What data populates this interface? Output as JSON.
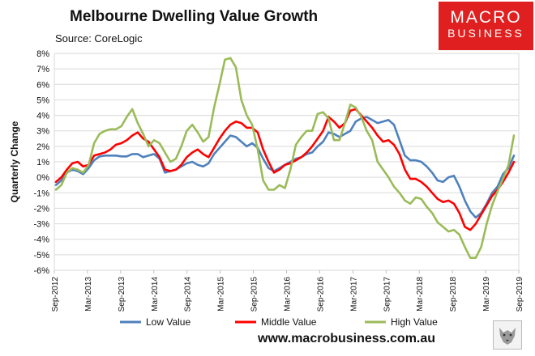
{
  "header": {
    "title": "Melbourne Dwelling Value Growth",
    "source": "Source: CoreLogic"
  },
  "logo": {
    "line1": "MACRO",
    "line2": "BUSINESS"
  },
  "footer": {
    "url": "www.macrobusiness.com.au"
  },
  "colors": {
    "low": "#4f81bd",
    "middle": "#ff0000",
    "high": "#9bbb59"
  },
  "chart_data": {
    "type": "line",
    "title": "Melbourne Dwelling Value Growth",
    "xlabel": "",
    "ylabel": "Quarterly Change",
    "ylim": [
      -6,
      8
    ],
    "yticks": [
      "8%",
      "7%",
      "6%",
      "5%",
      "4%",
      "3%",
      "2%",
      "1%",
      "0%",
      "-1%",
      "-2%",
      "-3%",
      "-4%",
      "-5%",
      "-6%"
    ],
    "xticks": [
      "Sep-2012",
      "Mar-2013",
      "Sep-2013",
      "Mar-2014",
      "Sep-2014",
      "Mar-2015",
      "Sep-2015",
      "Mar-2016",
      "Sep-2016",
      "Mar-2017",
      "Sep-2017",
      "Mar-2018",
      "Sep-2018",
      "Mar-2019",
      "Sep-2019"
    ],
    "legend_position": "bottom",
    "series": [
      {
        "name": "Low Value",
        "color": "#4f81bd",
        "values": [
          -0.5,
          -0.2,
          0.3,
          0.5,
          0.4,
          0.2,
          0.6,
          1.1,
          1.35,
          1.4,
          1.4,
          1.4,
          1.35,
          1.35,
          1.5,
          1.5,
          1.3,
          1.4,
          1.5,
          1.2,
          0.3,
          0.4,
          0.5,
          0.7,
          0.9,
          1.0,
          0.8,
          0.7,
          0.9,
          1.5,
          1.9,
          2.3,
          2.7,
          2.6,
          2.3,
          2.0,
          2.2,
          1.9,
          1.2,
          0.6,
          0.4,
          0.6,
          0.8,
          1.0,
          1.2,
          1.3,
          1.5,
          1.6,
          2.0,
          2.3,
          2.9,
          2.8,
          2.6,
          2.8,
          3.0,
          3.6,
          3.8,
          3.9,
          3.7,
          3.5,
          3.6,
          3.7,
          3.4,
          2.4,
          1.4,
          1.1,
          1.1,
          1.0,
          0.7,
          0.3,
          -0.2,
          -0.3,
          0.0,
          0.1,
          -0.6,
          -1.5,
          -2.2,
          -2.6,
          -2.3,
          -1.7,
          -1.0,
          -0.6,
          0.2,
          0.6,
          1.4
        ]
      },
      {
        "name": "Middle Value",
        "color": "#ff0000",
        "values": [
          -0.3,
          0.0,
          0.5,
          0.9,
          1.0,
          0.7,
          0.8,
          1.4,
          1.5,
          1.6,
          1.8,
          2.1,
          2.2,
          2.4,
          2.7,
          2.9,
          2.5,
          2.3,
          1.8,
          1.3,
          0.5,
          0.4,
          0.5,
          0.8,
          1.3,
          1.6,
          1.8,
          1.5,
          1.3,
          1.9,
          2.5,
          3.0,
          3.4,
          3.6,
          3.5,
          3.2,
          3.2,
          2.9,
          1.8,
          1.0,
          0.3,
          0.5,
          0.8,
          0.9,
          1.1,
          1.3,
          1.6,
          2.0,
          2.5,
          3.0,
          3.9,
          3.6,
          3.2,
          3.5,
          4.3,
          4.4,
          4.0,
          3.6,
          3.2,
          2.7,
          2.3,
          2.4,
          2.1,
          1.5,
          0.5,
          -0.1,
          -0.1,
          -0.3,
          -0.6,
          -1.0,
          -1.4,
          -1.6,
          -1.5,
          -1.7,
          -2.3,
          -3.2,
          -3.4,
          -3.0,
          -2.4,
          -1.8,
          -1.2,
          -0.8,
          -0.3,
          0.3,
          1.0
        ]
      },
      {
        "name": "High Value",
        "color": "#9bbb59",
        "values": [
          -0.8,
          -0.5,
          0.3,
          0.6,
          0.5,
          0.3,
          0.8,
          2.2,
          2.8,
          3.0,
          3.1,
          3.1,
          3.3,
          3.9,
          4.4,
          3.5,
          2.8,
          2.0,
          2.4,
          2.2,
          1.6,
          1.0,
          1.2,
          2.0,
          3.0,
          3.4,
          2.9,
          2.3,
          2.6,
          4.5,
          6.0,
          7.6,
          7.7,
          7.1,
          5.0,
          4.0,
          3.4,
          1.8,
          -0.2,
          -0.8,
          -0.8,
          -0.5,
          -0.7,
          0.5,
          2.1,
          2.6,
          3.0,
          3.0,
          4.1,
          4.2,
          3.8,
          2.4,
          2.4,
          3.5,
          4.7,
          4.5,
          3.9,
          3.0,
          2.4,
          1.0,
          0.5,
          0.0,
          -0.6,
          -1.0,
          -1.5,
          -1.7,
          -1.3,
          -1.4,
          -1.9,
          -2.3,
          -2.9,
          -3.2,
          -3.5,
          -3.4,
          -3.7,
          -4.5,
          -5.2,
          -5.2,
          -4.5,
          -3.0,
          -1.8,
          -0.9,
          -0.1,
          0.8,
          2.7
        ]
      }
    ]
  }
}
